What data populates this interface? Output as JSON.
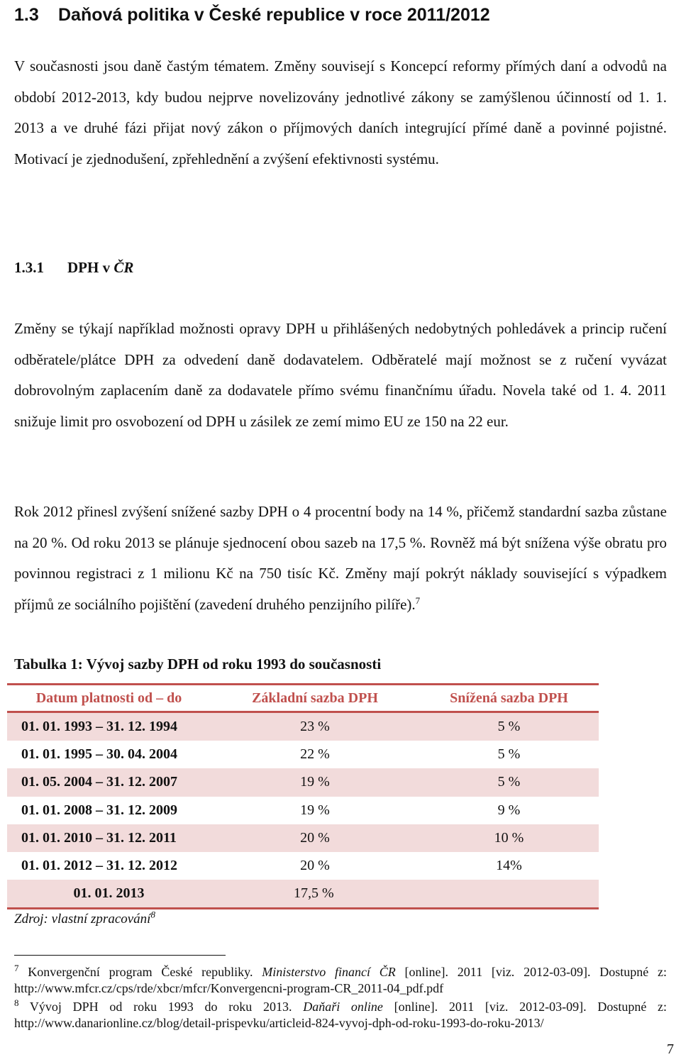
{
  "section": {
    "number": "1.3",
    "title": "Daňová politika v České republice v roce 2011/2012"
  },
  "intro_paragraph": "V současnosti jsou daně častým tématem. Změny souvisejí s Koncepcí reformy přímých daní a odvodů na období 2012-2013, kdy budou nejprve novelizovány jednotlivé zákony se zamýšlenou účinností od 1. 1. 2013 a ve druhé fázi přijat nový zákon o příjmových daních integrující přímé daně a povinné pojistné. Motivací je zjednodušení, zpřehlednění a zvýšení efektivnosti systému.",
  "subsection": {
    "number": "1.3.1",
    "title_prefix": "DPH v",
    "title_italic": "ČR"
  },
  "paragraph_1": "Změny se týkají například možnosti opravy DPH u přihlášených nedobytných pohledávek a princip ručení odběratele/plátce DPH za odvedení daně dodavatelem. Odběratelé mají možnost se z ručení vyvázat dobrovolným zaplacením daně za dodavatele přímo svému finančnímu úřadu. Novela také od 1. 4. 2011 snižuje limit pro osvobození od DPH u zásilek ze zemí mimo EU ze 150 na 22 eur.",
  "paragraph_2": {
    "text": "Rok 2012 přinesl zvýšení snížené sazby DPH o 4 procentní body na 14 %, přičemž standardní sazba zůstane na 20 %. Od roku 2013 se plánuje sjednocení obou sazeb na 17,5 %. Rovněž má být snížena výše obratu pro povinnou registraci z 1 milionu Kč na 750 tisíc Kč. Změny mají pokrýt náklady související s výpadkem příjmů ze sociálního pojištění (zavedení druhého penzijního pilíře).",
    "footnote_ref": "7"
  },
  "table": {
    "caption": "Tabulka 1: Vývoj sazby DPH od roku 1993 do současnosti",
    "headers": [
      "Datum platnosti od – do",
      "Základní sazba DPH",
      "Snížená sazba DPH"
    ],
    "rows": [
      {
        "period": "01. 01. 1993 – 31. 12. 1994",
        "basic": "23 %",
        "reduced": "5 %"
      },
      {
        "period": "01. 01. 1995 – 30. 04. 2004",
        "basic": "22 %",
        "reduced": "5 %"
      },
      {
        "period": "01. 05. 2004 – 31. 12. 2007",
        "basic": "19 %",
        "reduced": "5 %"
      },
      {
        "period": "01. 01. 2008 – 31. 12. 2009",
        "basic": "19 %",
        "reduced": "9 %"
      },
      {
        "period": "01. 01. 2010 – 31. 12. 2011",
        "basic": "20 %",
        "reduced": "10 %"
      },
      {
        "period": "01. 01. 2012 – 31. 12. 2012",
        "basic": "20 %",
        "reduced": "14%"
      }
    ],
    "last_row": {
      "period": "01. 01. 2013",
      "unified": "17,5 %"
    },
    "source": "Zdroj: vlastní zpracování",
    "source_footnote_ref": "8"
  },
  "footnotes": [
    {
      "number": "7",
      "text_before": "Konvergenční program České republiky.",
      "italic": "Ministerstvo financí ČR",
      "text_after": "[online]. 2011 [viz. 2012-03-09]. Dostupné z:",
      "url": "http://www.mfcr.cz/cps/rde/xbcr/mfcr/Konvergencni-program-CR_2011-04_pdf.pdf"
    },
    {
      "number": "8",
      "text_before": "Vývoj DPH od roku 1993 do roku 2013.",
      "italic": "Daňaři online",
      "text_after": "[online]. 2011 [viz. 2012-03-09]. Dostupné z:",
      "url": "http://www.danarionline.cz/blog/detail-prispevku/articleid-824-vyvoj-dph-od-roku-1993-do-roku-2013/"
    }
  ],
  "page_number": "7",
  "colors": {
    "accent": "#c0504d",
    "row_shade": "#f2dbdb"
  }
}
